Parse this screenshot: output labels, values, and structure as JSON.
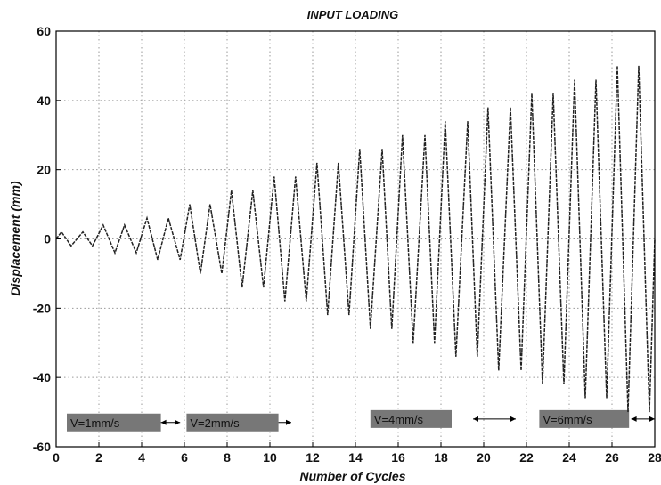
{
  "chart_data": {
    "type": "line",
    "title": "INPUT LOADING",
    "xlabel": "Number of Cycles",
    "ylabel": "Displacement (mm)",
    "xlim": [
      0,
      28
    ],
    "ylim": [
      -60,
      60
    ],
    "x_ticks": [
      0,
      2,
      4,
      6,
      8,
      10,
      12,
      14,
      16,
      18,
      20,
      22,
      24,
      26,
      28
    ],
    "y_ticks": [
      -60,
      -40,
      -20,
      0,
      20,
      40,
      60
    ],
    "grid": true,
    "series": [
      {
        "color": "#222222",
        "peaks": [
          {
            "x": 0.25,
            "y": 2
          },
          {
            "x": 0.7,
            "y": -2
          },
          {
            "x": 1.25,
            "y": 2
          },
          {
            "x": 1.7,
            "y": -2
          },
          {
            "x": 2.2,
            "y": 4
          },
          {
            "x": 2.75,
            "y": -4
          },
          {
            "x": 3.2,
            "y": 4
          },
          {
            "x": 3.75,
            "y": -4
          },
          {
            "x": 4.25,
            "y": 6
          },
          {
            "x": 4.75,
            "y": -6
          },
          {
            "x": 5.25,
            "y": 6
          },
          {
            "x": 5.8,
            "y": -6
          },
          {
            "x": 6.25,
            "y": 10
          },
          {
            "x": 6.75,
            "y": -10
          },
          {
            "x": 7.2,
            "y": 10
          },
          {
            "x": 7.75,
            "y": -10
          },
          {
            "x": 8.2,
            "y": 14
          },
          {
            "x": 8.7,
            "y": -14
          },
          {
            "x": 9.2,
            "y": 14
          },
          {
            "x": 9.7,
            "y": -14
          },
          {
            "x": 10.2,
            "y": 18
          },
          {
            "x": 10.7,
            "y": -18
          },
          {
            "x": 11.2,
            "y": 18
          },
          {
            "x": 11.7,
            "y": -18
          },
          {
            "x": 12.2,
            "y": 22
          },
          {
            "x": 12.7,
            "y": -22
          },
          {
            "x": 13.2,
            "y": 22
          },
          {
            "x": 13.7,
            "y": -22
          },
          {
            "x": 14.2,
            "y": 26
          },
          {
            "x": 14.7,
            "y": -26
          },
          {
            "x": 15.25,
            "y": 26
          },
          {
            "x": 15.7,
            "y": -26
          },
          {
            "x": 16.2,
            "y": 30
          },
          {
            "x": 16.7,
            "y": -30
          },
          {
            "x": 17.25,
            "y": 30
          },
          {
            "x": 17.7,
            "y": -30
          },
          {
            "x": 18.2,
            "y": 34
          },
          {
            "x": 18.7,
            "y": -34
          },
          {
            "x": 19.25,
            "y": 34
          },
          {
            "x": 19.7,
            "y": -34
          },
          {
            "x": 20.2,
            "y": 38
          },
          {
            "x": 20.7,
            "y": -38
          },
          {
            "x": 21.25,
            "y": 38
          },
          {
            "x": 21.75,
            "y": -38
          },
          {
            "x": 22.25,
            "y": 42
          },
          {
            "x": 22.75,
            "y": -42
          },
          {
            "x": 23.25,
            "y": 42
          },
          {
            "x": 23.75,
            "y": -42
          },
          {
            "x": 24.25,
            "y": 46
          },
          {
            "x": 24.75,
            "y": -46
          },
          {
            "x": 25.25,
            "y": 46
          },
          {
            "x": 25.75,
            "y": -46
          },
          {
            "x": 26.25,
            "y": 50
          },
          {
            "x": 26.75,
            "y": -50
          },
          {
            "x": 27.25,
            "y": 50
          },
          {
            "x": 27.75,
            "y": -50
          },
          {
            "x": 28,
            "y": 0
          }
        ]
      }
    ],
    "annotations": [
      {
        "text": "V=1mm/s",
        "x_range": [
          0.5,
          4.9
        ],
        "y": -53,
        "arrow_x": [
          4.9,
          5.8
        ]
      },
      {
        "text": "V=2mm/s",
        "x_range": [
          6.1,
          10.4
        ],
        "y": -53,
        "arrow_x": [
          5.9,
          11.0
        ]
      },
      {
        "text": "V=4mm/s",
        "x_range": [
          14.7,
          18.5
        ],
        "y": -52,
        "arrow_x": [
          19.5,
          21.5
        ]
      },
      {
        "text": "V=6mm/s",
        "x_range": [
          22.6,
          26.8
        ],
        "y": -52,
        "arrow_x": [
          26.9,
          28
        ]
      }
    ]
  }
}
